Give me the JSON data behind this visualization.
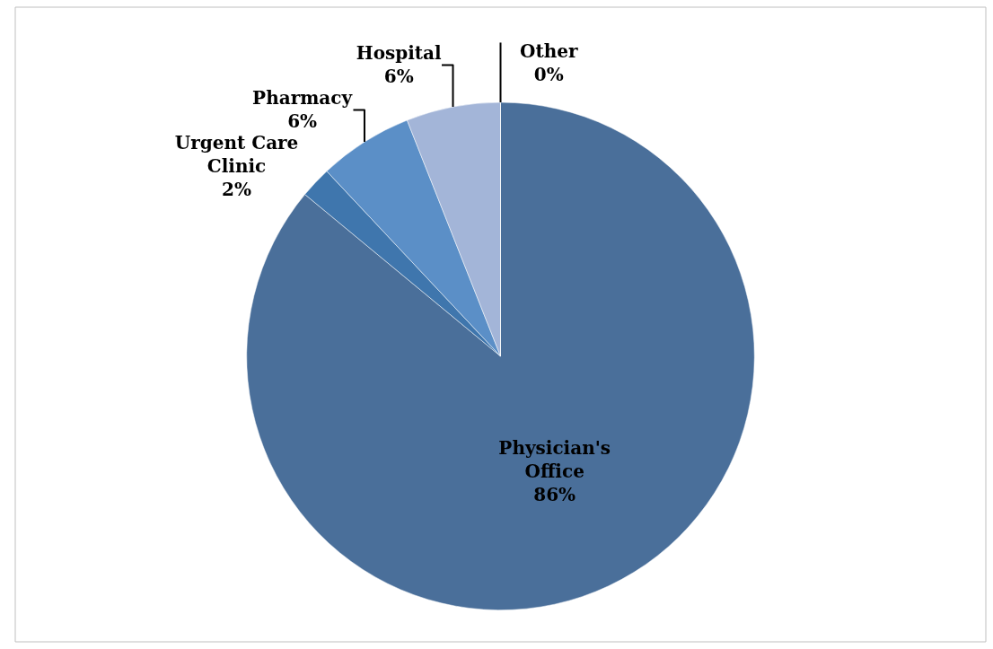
{
  "chart_data": {
    "type": "pie",
    "categories": [
      "Physician's Office",
      "Urgent Care Clinic",
      "Pharmacy",
      "Hospital",
      "Other"
    ],
    "values": [
      86,
      2,
      6,
      6,
      0
    ],
    "value_labels": [
      "86%",
      "2%",
      "6%",
      "6%",
      "0%"
    ],
    "colors": [
      "#4a6f9a",
      "#3f76ad",
      "#5b8fc7",
      "#a3b5d8",
      "#d0d8ea"
    ],
    "legend": false
  }
}
